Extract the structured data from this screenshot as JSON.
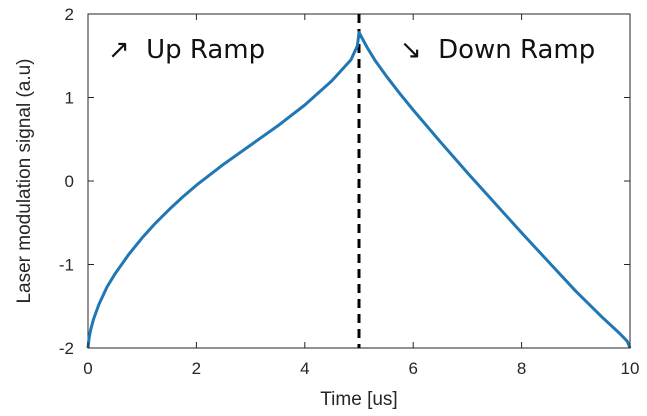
{
  "chart_data": {
    "type": "line",
    "xlabel": "Time [us]",
    "ylabel": "Laser modulation signal (a.u)",
    "xlim": [
      0,
      10
    ],
    "ylim": [
      -2,
      2
    ],
    "xticks": [
      0,
      2,
      4,
      6,
      8,
      10
    ],
    "yticks": [
      -2,
      -1,
      0,
      1,
      2
    ],
    "x_tick_labels": [
      "0",
      "2",
      "4",
      "6",
      "8",
      "10"
    ],
    "y_tick_labels": [
      "-2",
      "-1",
      "0",
      "1",
      "2"
    ],
    "grid": false,
    "series": [
      {
        "color": "#1f77b4",
        "x": [
          0,
          0.02,
          0.05,
          0.1,
          0.2,
          0.35,
          0.5,
          0.75,
          1.0,
          1.25,
          1.5,
          1.75,
          2.0,
          2.5,
          3.0,
          3.5,
          4.0,
          4.5,
          4.85,
          4.97,
          5.0,
          5.05,
          5.15,
          5.3,
          5.5,
          5.75,
          6.0,
          6.5,
          7.0,
          7.5,
          8.0,
          8.5,
          9.0,
          9.5,
          9.8,
          9.95,
          10.0
        ],
        "y": [
          -2.0,
          -1.88,
          -1.78,
          -1.66,
          -1.48,
          -1.27,
          -1.11,
          -0.88,
          -0.68,
          -0.5,
          -0.34,
          -0.19,
          -0.05,
          0.2,
          0.43,
          0.66,
          0.91,
          1.2,
          1.45,
          1.62,
          1.78,
          1.72,
          1.6,
          1.44,
          1.26,
          1.05,
          0.85,
          0.47,
          0.1,
          -0.26,
          -0.62,
          -0.97,
          -1.32,
          -1.64,
          -1.82,
          -1.92,
          -2.0
        ]
      }
    ],
    "vertical_marker": {
      "x": 5,
      "style": "dashed",
      "color": "#000000"
    },
    "annotations": [
      {
        "symbol": "↗",
        "text": "Up Ramp"
      },
      {
        "symbol": "↘",
        "text": "Down Ramp"
      }
    ]
  }
}
